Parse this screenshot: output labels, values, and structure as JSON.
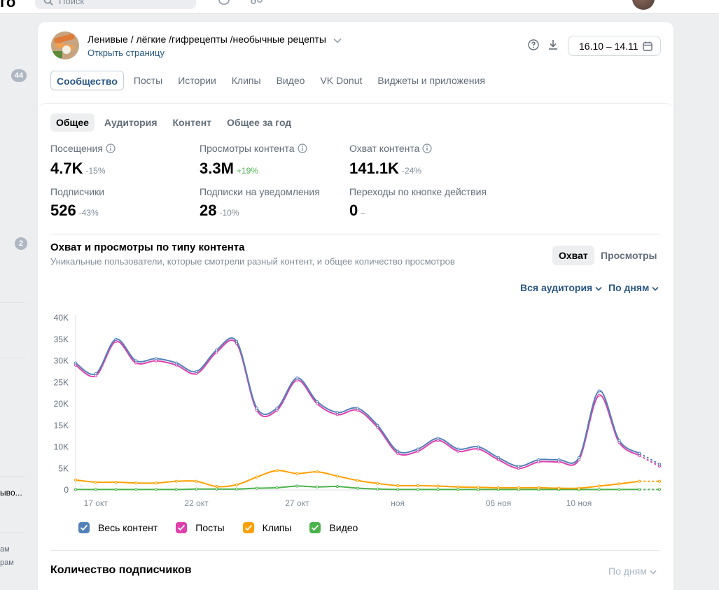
{
  "header": {
    "logo_fragment": "го",
    "search_placeholder": "Поиск"
  },
  "sidebar": {
    "badge_1": "44",
    "badge_2": "2",
    "item_text": "ывo...",
    "muted_1": "ам",
    "muted_2": "рам"
  },
  "community": {
    "name": "Ленивые / лёгкие /гифрецепты /необычные рецепты",
    "open_link": "Открыть страницу",
    "date_range": "16.10 – 14.11"
  },
  "main_tabs": [
    "Сообщество",
    "Посты",
    "Истории",
    "Клипы",
    "Видео",
    "VK Donut",
    "Виджеты и приложения"
  ],
  "sub_tabs": [
    "Общее",
    "Аудитория",
    "Контент",
    "Общее за год"
  ],
  "stats": [
    {
      "label": "Посещения",
      "value": "4.7K",
      "change": "-15%"
    },
    {
      "label": "Просмотры контента",
      "value": "3.3M",
      "change": "+19%"
    },
    {
      "label": "Охват контента",
      "value": "141.1K",
      "change": "-24%"
    },
    {
      "label": "Подписчики",
      "value": "526",
      "change": "-43%"
    },
    {
      "label": "Подписки на уведомления",
      "value": "28",
      "change": "-10%"
    },
    {
      "label": "Переходы по кнопке действия",
      "value": "0",
      "change": "–"
    }
  ],
  "reach_section": {
    "title": "Охват и просмотры по типу контента",
    "subtitle": "Уникальные пользователи, которые смотрели разный контент, и общее количество просмотров",
    "toggle_reach": "Охват",
    "toggle_views": "Просмотры",
    "filter_audience": "Вся аудитория",
    "filter_period": "По дням"
  },
  "subscribers_section": {
    "title": "Количество подписчиков",
    "filter_period": "По дням"
  },
  "chart_data": {
    "type": "line",
    "title": "Охват и просмотры по типу контента",
    "xlabel": "",
    "ylabel": "",
    "ylim": [
      0,
      40000
    ],
    "yticks": [
      0,
      5000,
      10000,
      15000,
      20000,
      25000,
      30000,
      35000,
      40000
    ],
    "ytick_labels": [
      "0",
      "5K",
      "10K",
      "15K",
      "20K",
      "25K",
      "30K",
      "35K",
      "40K"
    ],
    "x_day_range": [
      0,
      29
    ],
    "xticks": [
      {
        "day": 1,
        "label": "17 окт"
      },
      {
        "day": 6,
        "label": "22 окт"
      },
      {
        "day": 11,
        "label": "27 окт"
      },
      {
        "day": 16,
        "label": "ноя"
      },
      {
        "day": 21,
        "label": "06 ноя"
      },
      {
        "day": 25,
        "label": "10 ноя"
      }
    ],
    "grid": false,
    "dashed_from_day": 28,
    "series": [
      {
        "name": "Весь контент",
        "color": "#5181b8",
        "values": [
          29500,
          27000,
          35000,
          30000,
          30500,
          29500,
          27500,
          32500,
          34500,
          19000,
          19000,
          26000,
          20500,
          18000,
          19000,
          15000,
          9000,
          9500,
          12000,
          9500,
          10000,
          7500,
          5500,
          7000,
          7000,
          7500,
          23000,
          11500,
          8500,
          6000
        ]
      },
      {
        "name": "Посты",
        "color": "#e03fab",
        "values": [
          29000,
          26500,
          34500,
          29500,
          30000,
          29000,
          27000,
          32000,
          34000,
          18500,
          18500,
          25500,
          20000,
          17500,
          18500,
          14500,
          8500,
          9000,
          11500,
          9000,
          9500,
          7000,
          5000,
          6500,
          6500,
          7000,
          22000,
          11000,
          8000,
          5500
        ]
      },
      {
        "name": "Клипы",
        "color": "#ffa000",
        "values": [
          2300,
          1800,
          1800,
          1600,
          1600,
          2000,
          2000,
          800,
          1200,
          3000,
          4500,
          3800,
          4200,
          3200,
          2200,
          1500,
          1000,
          1000,
          900,
          700,
          600,
          500,
          500,
          500,
          400,
          400,
          900,
          1400,
          2000,
          2000
        ]
      },
      {
        "name": "Видео",
        "color": "#4bb34b",
        "values": [
          100,
          100,
          100,
          100,
          100,
          100,
          200,
          200,
          200,
          400,
          500,
          900,
          700,
          800,
          400,
          200,
          100,
          100,
          100,
          100,
          100,
          100,
          100,
          100,
          100,
          100,
          100,
          100,
          100,
          100
        ]
      }
    ]
  }
}
